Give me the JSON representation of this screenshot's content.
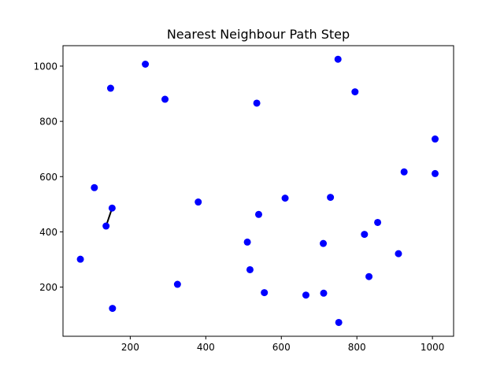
{
  "chart_data": {
    "type": "scatter",
    "title": "Nearest Neighbour Path Step",
    "xlabel": "",
    "ylabel": "",
    "xlim": [
      22,
      1056
    ],
    "ylim": [
      22,
      1074
    ],
    "xticks": [
      200,
      400,
      600,
      800,
      1000
    ],
    "yticks": [
      200,
      400,
      600,
      800,
      1000
    ],
    "xtick_labels": [
      "200",
      "400",
      "600",
      "800",
      "1000"
    ],
    "ytick_labels": [
      "200",
      "400",
      "600",
      "800",
      "1000"
    ],
    "grid": false,
    "point_color": "#0000ff",
    "path_color": "#000000",
    "points": [
      {
        "x": 240,
        "y": 1007
      },
      {
        "x": 750,
        "y": 1025
      },
      {
        "x": 148,
        "y": 920
      },
      {
        "x": 292,
        "y": 880
      },
      {
        "x": 795,
        "y": 907
      },
      {
        "x": 535,
        "y": 866
      },
      {
        "x": 1007,
        "y": 736
      },
      {
        "x": 925,
        "y": 617
      },
      {
        "x": 1007,
        "y": 611
      },
      {
        "x": 105,
        "y": 560
      },
      {
        "x": 152,
        "y": 486
      },
      {
        "x": 380,
        "y": 508
      },
      {
        "x": 610,
        "y": 522
      },
      {
        "x": 730,
        "y": 525
      },
      {
        "x": 540,
        "y": 463
      },
      {
        "x": 855,
        "y": 434
      },
      {
        "x": 136,
        "y": 421
      },
      {
        "x": 820,
        "y": 391
      },
      {
        "x": 510,
        "y": 363
      },
      {
        "x": 711,
        "y": 358
      },
      {
        "x": 910,
        "y": 321
      },
      {
        "x": 68,
        "y": 301
      },
      {
        "x": 517,
        "y": 263
      },
      {
        "x": 832,
        "y": 238
      },
      {
        "x": 325,
        "y": 210
      },
      {
        "x": 555,
        "y": 180
      },
      {
        "x": 665,
        "y": 171
      },
      {
        "x": 712,
        "y": 178
      },
      {
        "x": 153,
        "y": 123
      },
      {
        "x": 752,
        "y": 72
      }
    ],
    "path": [
      {
        "x": 136,
        "y": 421
      },
      {
        "x": 152,
        "y": 486
      }
    ]
  }
}
